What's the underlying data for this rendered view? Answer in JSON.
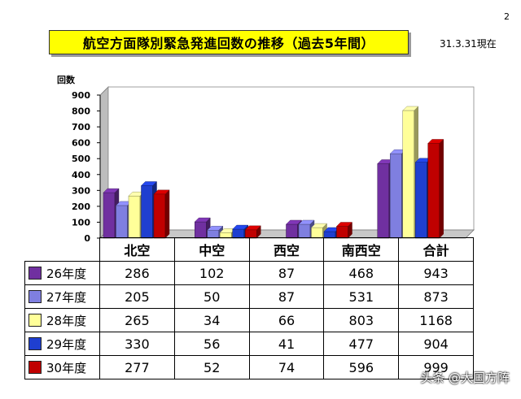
{
  "page_number": "2",
  "title": "航空方面隊別緊急発進回数の推移（過去5年間）",
  "date_note": "31.3.31現在",
  "watermark": "头条 @大国方阵",
  "chart_data": {
    "type": "bar",
    "ylabel": "回数",
    "ylim": [
      0,
      900
    ],
    "yticks": [
      0,
      100,
      200,
      300,
      400,
      500,
      600,
      700,
      800,
      900
    ],
    "grid": false,
    "legend": "table-left",
    "categories": [
      "北空",
      "中空",
      "西空",
      "南西空"
    ],
    "series": [
      {
        "name": "26年度",
        "color": "#7030a0",
        "values": [
          286,
          102,
          87,
          468
        ]
      },
      {
        "name": "27年度",
        "color": "#7f7fe0",
        "values": [
          205,
          50,
          87,
          531
        ]
      },
      {
        "name": "28年度",
        "color": "#ffff99",
        "values": [
          265,
          34,
          66,
          803
        ]
      },
      {
        "name": "29年度",
        "color": "#1f3fd0",
        "values": [
          330,
          56,
          41,
          477
        ]
      },
      {
        "name": "30年度",
        "color": "#c00000",
        "values": [
          277,
          52,
          74,
          596
        ]
      }
    ]
  },
  "table": {
    "headers": [
      "北空",
      "中空",
      "西空",
      "南西空",
      "合計"
    ],
    "rows": [
      {
        "label": "26年度",
        "cells": [
          "286",
          "102",
          "87",
          "468",
          "943"
        ]
      },
      {
        "label": "27年度",
        "cells": [
          "205",
          "50",
          "87",
          "531",
          "873"
        ]
      },
      {
        "label": "28年度",
        "cells": [
          "265",
          "34",
          "66",
          "803",
          "1168"
        ]
      },
      {
        "label": "29年度",
        "cells": [
          "330",
          "56",
          "41",
          "477",
          "904"
        ]
      },
      {
        "label": "30年度",
        "cells": [
          "277",
          "52",
          "74",
          "596",
          "999"
        ]
      }
    ]
  }
}
